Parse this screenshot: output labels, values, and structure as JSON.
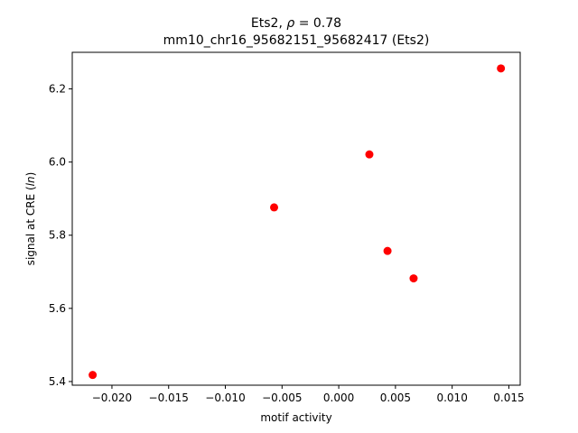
{
  "chart_data": {
    "type": "scatter",
    "title_line1_prefix": "Ets2, ",
    "title_line1_rho": "ρ",
    "title_line1_suffix": " = 0.78",
    "title_line2": "mm10_chr16_95682151_95682417 (Ets2)",
    "xlabel": "motif activity",
    "ylabel_prefix": "signal at CRE (",
    "ylabel_italic": "ln",
    "ylabel_suffix": ")",
    "xlim": [
      -0.0235,
      0.016
    ],
    "ylim": [
      5.39,
      6.3
    ],
    "xticks": [
      -0.02,
      -0.015,
      -0.01,
      -0.005,
      0.0,
      0.005,
      0.01,
      0.015
    ],
    "xtick_labels": [
      "−0.020",
      "−0.015",
      "−0.010",
      "−0.005",
      "0.000",
      "0.005",
      "0.010",
      "0.015"
    ],
    "yticks": [
      5.4,
      5.6,
      5.8,
      6.0,
      6.2
    ],
    "ytick_labels": [
      "5.4",
      "5.6",
      "5.8",
      "6.0",
      "6.2"
    ],
    "grid": false,
    "marker_color": "#ff0000",
    "points": [
      {
        "x": -0.0217,
        "y": 5.418
      },
      {
        "x": -0.0057,
        "y": 5.876
      },
      {
        "x": 0.0027,
        "y": 6.021
      },
      {
        "x": 0.0043,
        "y": 5.757
      },
      {
        "x": 0.0066,
        "y": 5.682
      },
      {
        "x": 0.0143,
        "y": 6.256
      }
    ]
  }
}
